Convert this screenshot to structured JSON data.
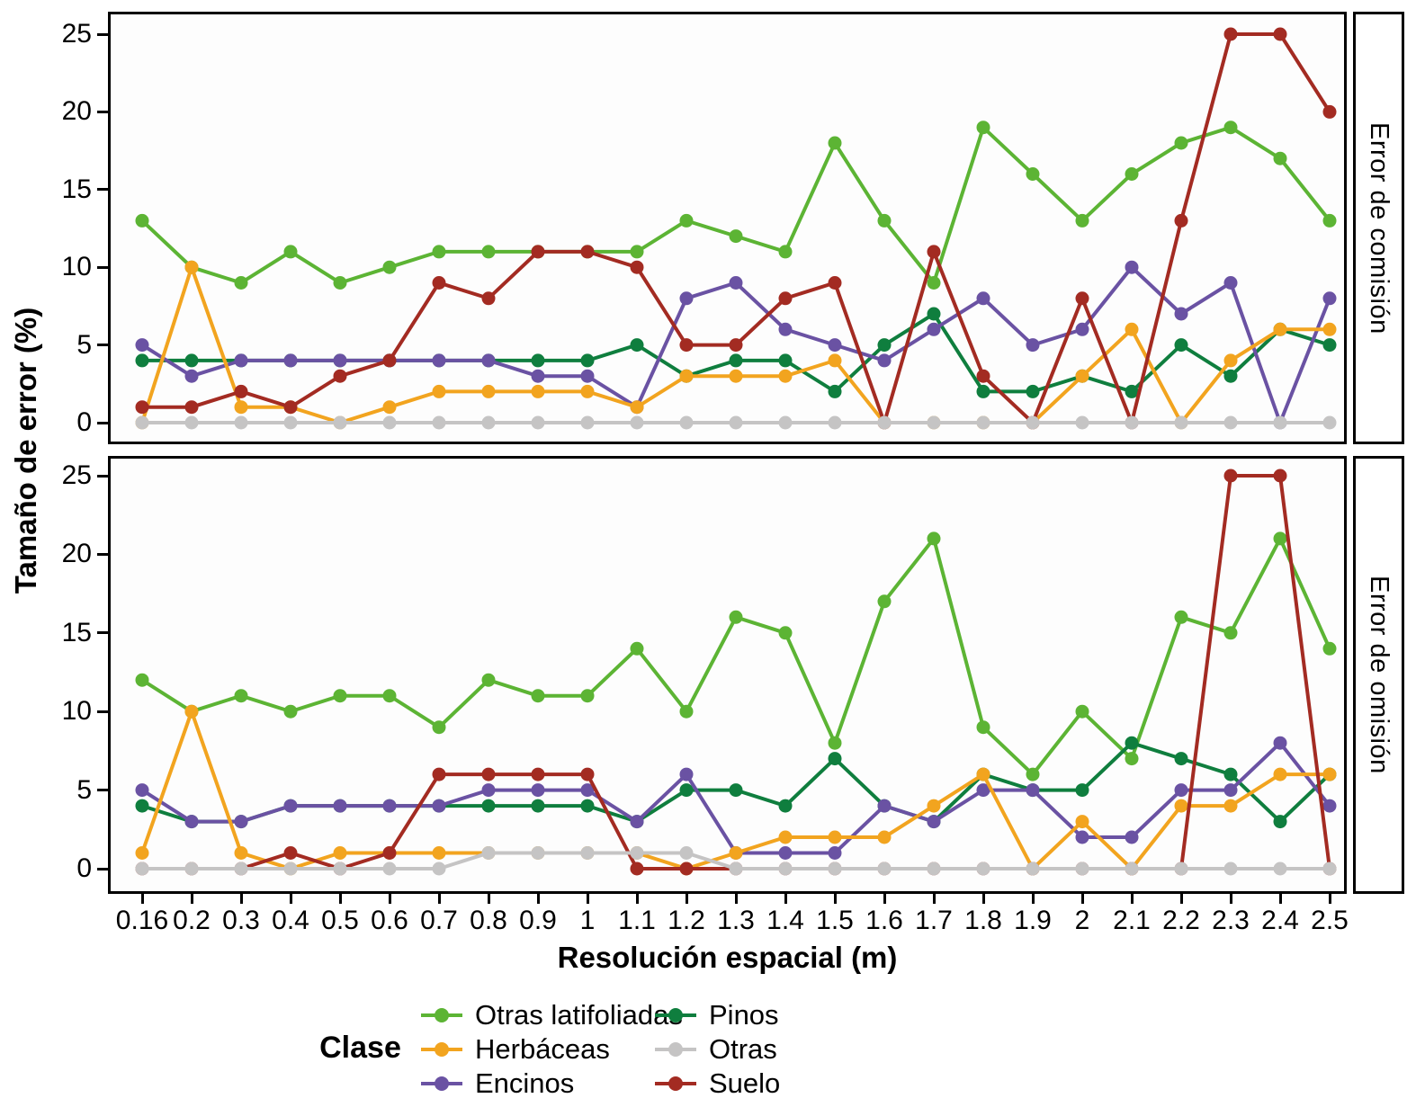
{
  "chart_data": {
    "type": "line",
    "xlabel": "Resolución espacial (m)",
    "ylabel": "Tamaño de error (%)",
    "legend_title": "Clase",
    "ylim": [
      0,
      25
    ],
    "y_ticks": [
      0,
      5,
      10,
      15,
      20,
      25
    ],
    "x_tick_labels": [
      "0.16",
      "0.2",
      "0.3",
      "0.4",
      "0.5",
      "0.6",
      "0.7",
      "0.8",
      "0.9",
      "1",
      "1.1",
      "1.2",
      "1.3",
      "1.4",
      "1.5",
      "1.6",
      "1.7",
      "1.8",
      "1.9",
      "2",
      "2.1",
      "2.2",
      "2.3",
      "2.4",
      "2.5"
    ],
    "grid": "off",
    "legend_position": "bottom",
    "facets": [
      {
        "label": "Error de comisión",
        "series": [
          {
            "name": "Otras latifoliadas",
            "color": "#5cb434",
            "values": [
              13,
              10,
              9,
              11,
              9,
              10,
              11,
              11,
              11,
              11,
              11,
              13,
              12,
              11,
              18,
              13,
              9,
              19,
              16,
              13,
              16,
              18,
              19,
              17,
              13
            ]
          },
          {
            "name": "Herbáceas",
            "color": "#f2a41f",
            "values": [
              0,
              10,
              1,
              1,
              0,
              1,
              2,
              2,
              2,
              2,
              1,
              3,
              3,
              3,
              4,
              0,
              0,
              0,
              0,
              3,
              6,
              0,
              4,
              6,
              6
            ]
          },
          {
            "name": "Encinos",
            "color": "#6a52a3",
            "values": [
              5,
              3,
              4,
              4,
              4,
              4,
              4,
              4,
              3,
              3,
              1,
              8,
              9,
              6,
              5,
              4,
              6,
              8,
              5,
              6,
              10,
              7,
              9,
              0,
              8
            ]
          },
          {
            "name": "Pinos",
            "color": "#0f7e3e",
            "values": [
              4,
              4,
              4,
              4,
              4,
              4,
              4,
              4,
              4,
              4,
              5,
              3,
              4,
              4,
              2,
              5,
              7,
              2,
              2,
              3,
              2,
              5,
              3,
              6,
              5
            ]
          },
          {
            "name": "Otras",
            "color": "#c5c4c4",
            "values": [
              0,
              0,
              0,
              0,
              0,
              0,
              0,
              0,
              0,
              0,
              0,
              0,
              0,
              0,
              0,
              0,
              0,
              0,
              0,
              0,
              0,
              0,
              0,
              0,
              0
            ]
          },
          {
            "name": "Suelo",
            "color": "#a32b22",
            "values": [
              1,
              1,
              2,
              1,
              3,
              4,
              9,
              8,
              11,
              11,
              10,
              5,
              5,
              8,
              9,
              0,
              11,
              3,
              0,
              8,
              0,
              13,
              25,
              25,
              20
            ]
          }
        ]
      },
      {
        "label": "Error de omisión",
        "series": [
          {
            "name": "Otras latifoliadas",
            "color": "#5cb434",
            "values": [
              12,
              10,
              11,
              10,
              11,
              11,
              9,
              12,
              11,
              11,
              14,
              10,
              16,
              15,
              8,
              17,
              21,
              9,
              6,
              10,
              7,
              16,
              15,
              21,
              14
            ]
          },
          {
            "name": "Herbáceas",
            "color": "#f2a41f",
            "values": [
              1,
              10,
              1,
              0,
              1,
              1,
              1,
              1,
              1,
              1,
              1,
              0,
              1,
              2,
              2,
              2,
              4,
              6,
              0,
              3,
              0,
              4,
              4,
              6,
              6
            ]
          },
          {
            "name": "Encinos",
            "color": "#6a52a3",
            "values": [
              5,
              3,
              3,
              4,
              4,
              4,
              4,
              5,
              5,
              5,
              3,
              6,
              1,
              1,
              1,
              4,
              3,
              5,
              5,
              2,
              2,
              5,
              5,
              8,
              4
            ]
          },
          {
            "name": "Pinos",
            "color": "#0f7e3e",
            "values": [
              4,
              3,
              3,
              4,
              4,
              4,
              4,
              4,
              4,
              4,
              3,
              5,
              5,
              4,
              7,
              4,
              3,
              6,
              5,
              5,
              8,
              7,
              6,
              3,
              6
            ]
          },
          {
            "name": "Otras",
            "color": "#c5c4c4",
            "values": [
              0,
              0,
              0,
              0,
              0,
              0,
              0,
              1,
              1,
              1,
              1,
              1,
              0,
              0,
              0,
              0,
              0,
              0,
              0,
              0,
              0,
              0,
              0,
              0,
              0
            ]
          },
          {
            "name": "Suelo",
            "color": "#a32b22",
            "values": [
              0,
              0,
              0,
              1,
              0,
              1,
              6,
              6,
              6,
              6,
              0,
              0,
              0,
              0,
              0,
              0,
              0,
              0,
              0,
              0,
              0,
              0,
              25,
              25,
              0
            ]
          }
        ]
      }
    ]
  }
}
